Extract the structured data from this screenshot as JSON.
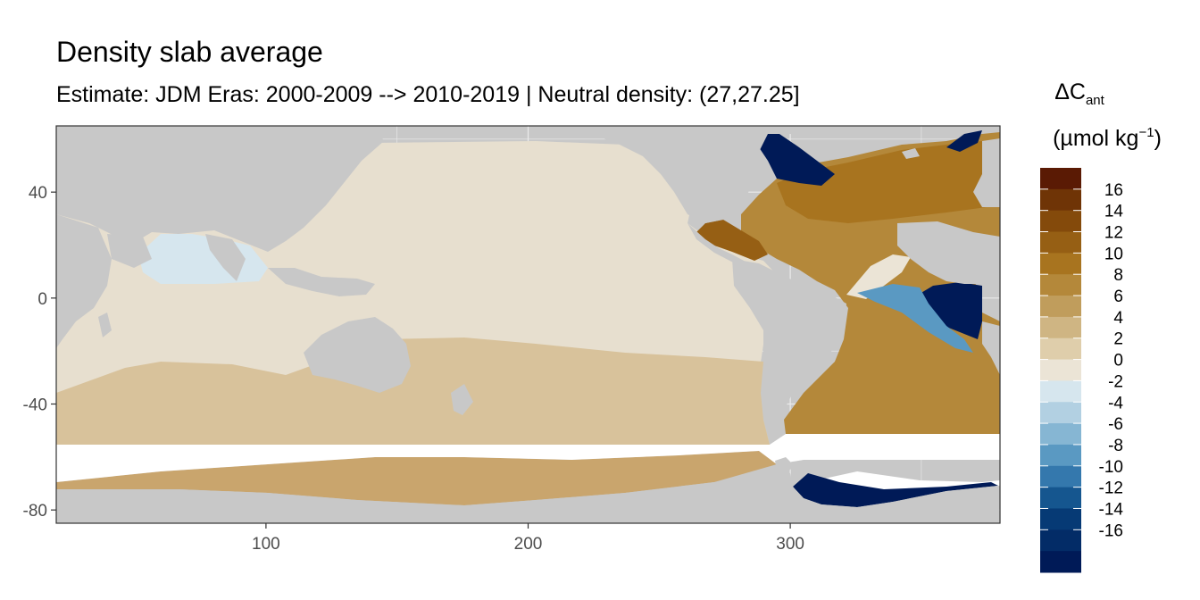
{
  "chart_data": {
    "type": "heatmap",
    "title": "Density slab average",
    "subtitle": "Estimate: JDM Eras: 2000-2009 --> 2010-2019 | Neutral density: (27,27.25]",
    "xlim": [
      20,
      380
    ],
    "ylim": [
      -85,
      65
    ],
    "x_ticks": [
      100,
      200,
      300
    ],
    "y_ticks": [
      40,
      0,
      -40,
      -80
    ],
    "grid": true,
    "legend": {
      "placement": "right",
      "title_main": "ΔC",
      "title_sub": "ant",
      "unit_pre": "(µmol kg",
      "unit_sup": "−1",
      "unit_post": ")",
      "labels": [
        16,
        14,
        12,
        10,
        8,
        6,
        4,
        2,
        0,
        -2,
        -4,
        -6,
        -8,
        -10,
        -12,
        -14,
        -16
      ],
      "bin_colors": [
        "#5a1a04",
        "#6f3406",
        "#844a0b",
        "#965f14",
        "#a8741f",
        "#b4883a",
        "#c09d5c",
        "#cfb583",
        "#dfceab",
        "#ebe4d6",
        "#d6e6ee",
        "#b2d0e2",
        "#86b6d3",
        "#5a99c2",
        "#3478ad",
        "#15568f",
        "#063a75",
        "#032c67",
        "#001a57"
      ]
    },
    "colors": {
      "land": "#c8c8c8",
      "no_data": "#ffffff",
      "pacific": "#e7dfcf",
      "indian": "#e2d8c2",
      "southern_band": "#d8c29b",
      "southern_ocean": "#c9a56d",
      "atlantic_core": "#b88d4a",
      "negative_strong": "#001a57"
    }
  }
}
